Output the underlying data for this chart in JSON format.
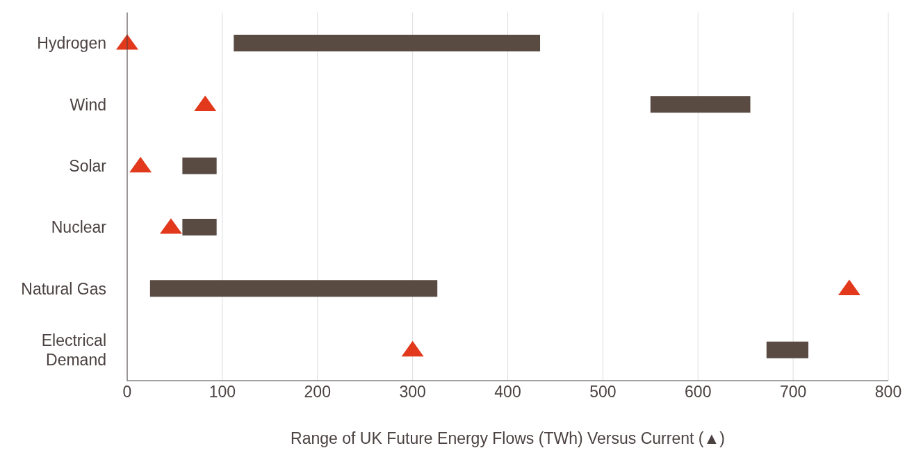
{
  "chart_data": {
    "type": "bar",
    "orientation": "horizontal",
    "xlabel": "Range of UK Future Energy Flows (TWh) Versus Current (▲)",
    "categories": [
      "Hydrogen",
      "Wind",
      "Solar",
      "Nuclear",
      "Natural Gas",
      "Electrical Demand"
    ],
    "series": [
      {
        "type": "bar",
        "color": "#594a42",
        "base": [
          112,
          550,
          58,
          58,
          24,
          672
        ],
        "values": [
          322,
          105,
          36,
          36,
          302,
          44
        ]
      },
      {
        "type": "scatter",
        "color": "#e2381b",
        "marker": "triangle",
        "values": [
          0,
          82,
          14,
          46,
          759,
          300
        ]
      }
    ],
    "xlim": [
      0,
      800
    ],
    "xticks": [
      0,
      100,
      200,
      300,
      400,
      500,
      600,
      700,
      800
    ],
    "grid": "x"
  }
}
